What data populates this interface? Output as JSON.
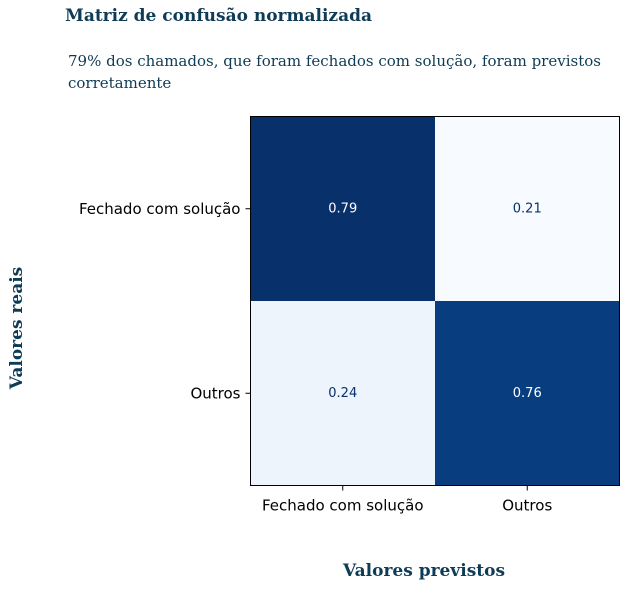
{
  "chart_data": {
    "type": "heatmap",
    "title": "Matriz de confusão normalizada",
    "subtitle": "79% dos chamados, que foram fechados com solução, foram previstos corretamente",
    "xlabel": "Valores previstos",
    "ylabel": "Valores reais",
    "x_categories": [
      "Fechado com solução",
      "Outros"
    ],
    "y_categories": [
      "Fechado com solução",
      "Outros"
    ],
    "values": [
      [
        0.79,
        0.21
      ],
      [
        0.24,
        0.76
      ]
    ],
    "value_labels": [
      [
        "0.79",
        "0.21"
      ],
      [
        "0.24",
        "0.76"
      ]
    ],
    "colormap": "Blues",
    "vmin": 0.21,
    "vmax": 0.79
  }
}
